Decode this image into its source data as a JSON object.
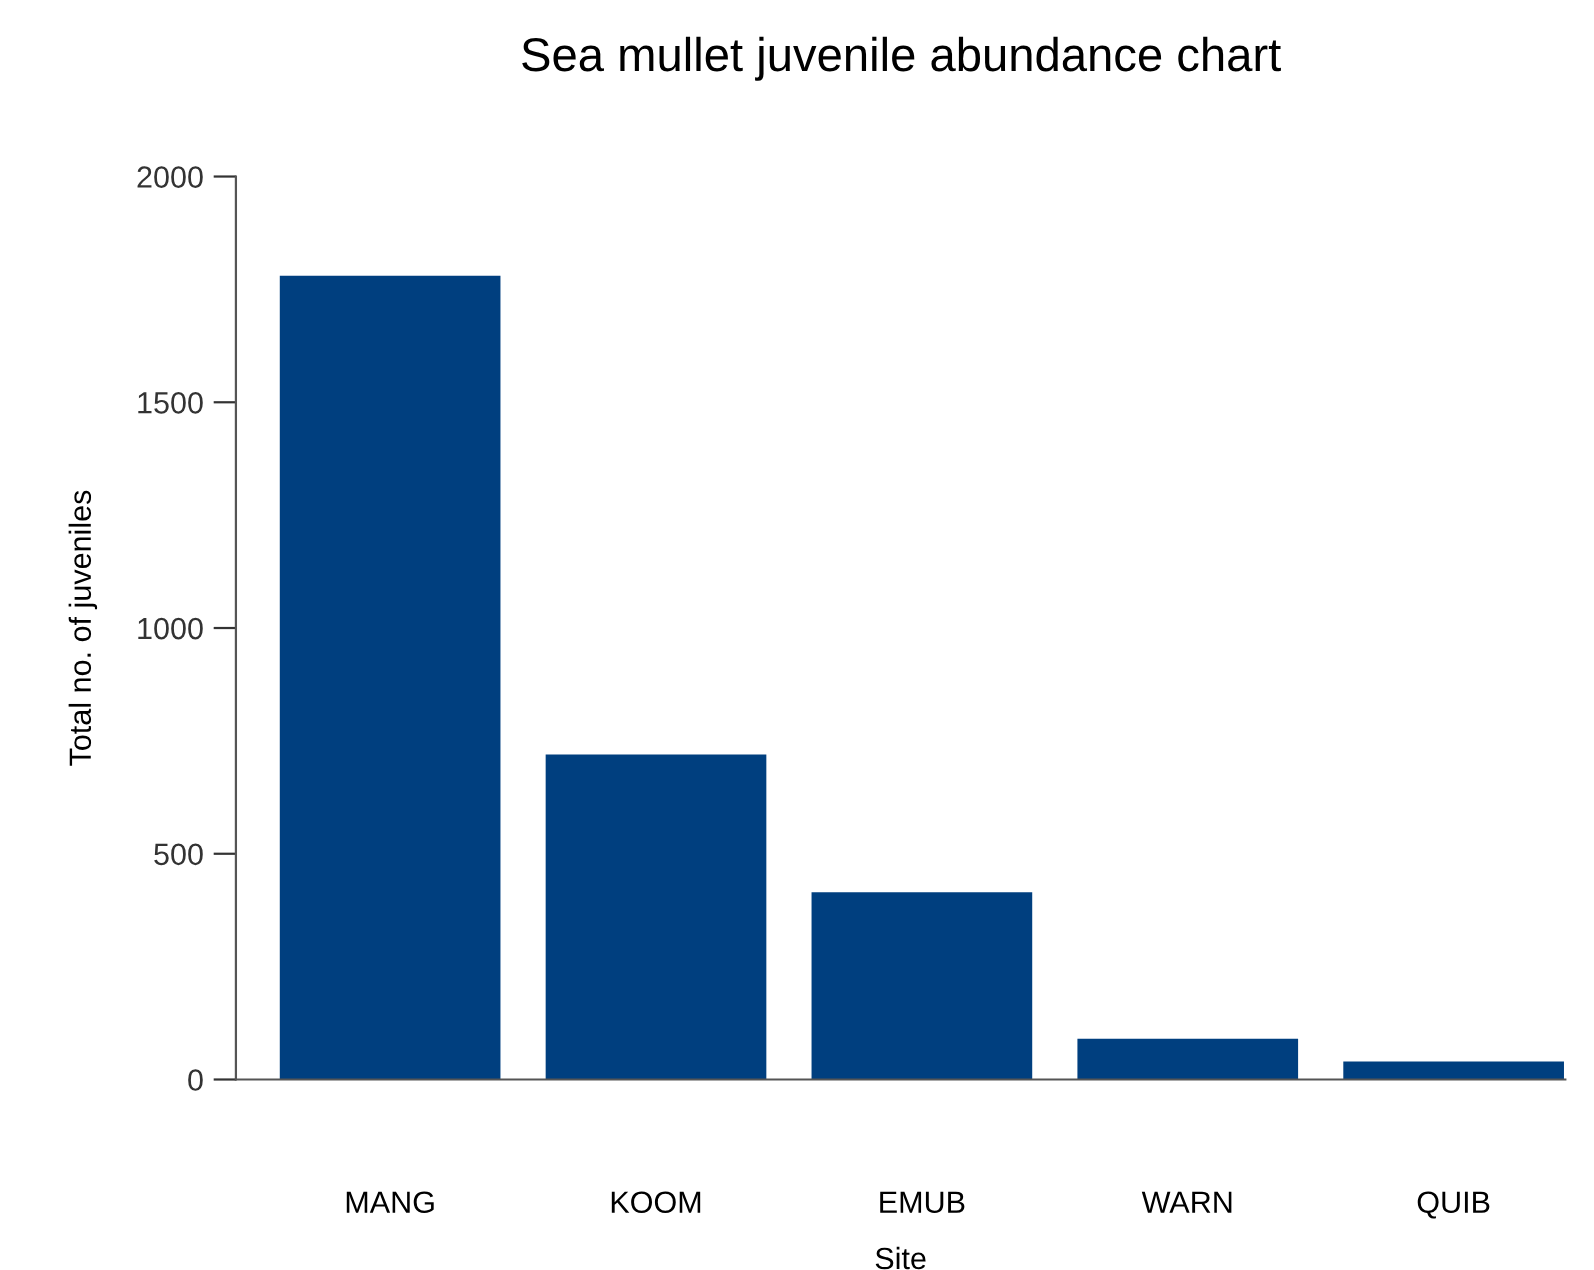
{
  "chart_data": {
    "type": "bar",
    "title": "Sea mullet juvenile abundance chart",
    "xlabel": "Site",
    "ylabel": "Total no. of juveniles",
    "categories": [
      "MANG",
      "KOOM",
      "EMUB",
      "WARN",
      "QUIB"
    ],
    "values": [
      1780,
      720,
      415,
      90,
      40
    ],
    "color": "#003f7f",
    "ylim": [
      0,
      2000
    ],
    "yticks": [
      0,
      500,
      1000,
      1500,
      2000
    ],
    "grid": false,
    "legend": false
  }
}
